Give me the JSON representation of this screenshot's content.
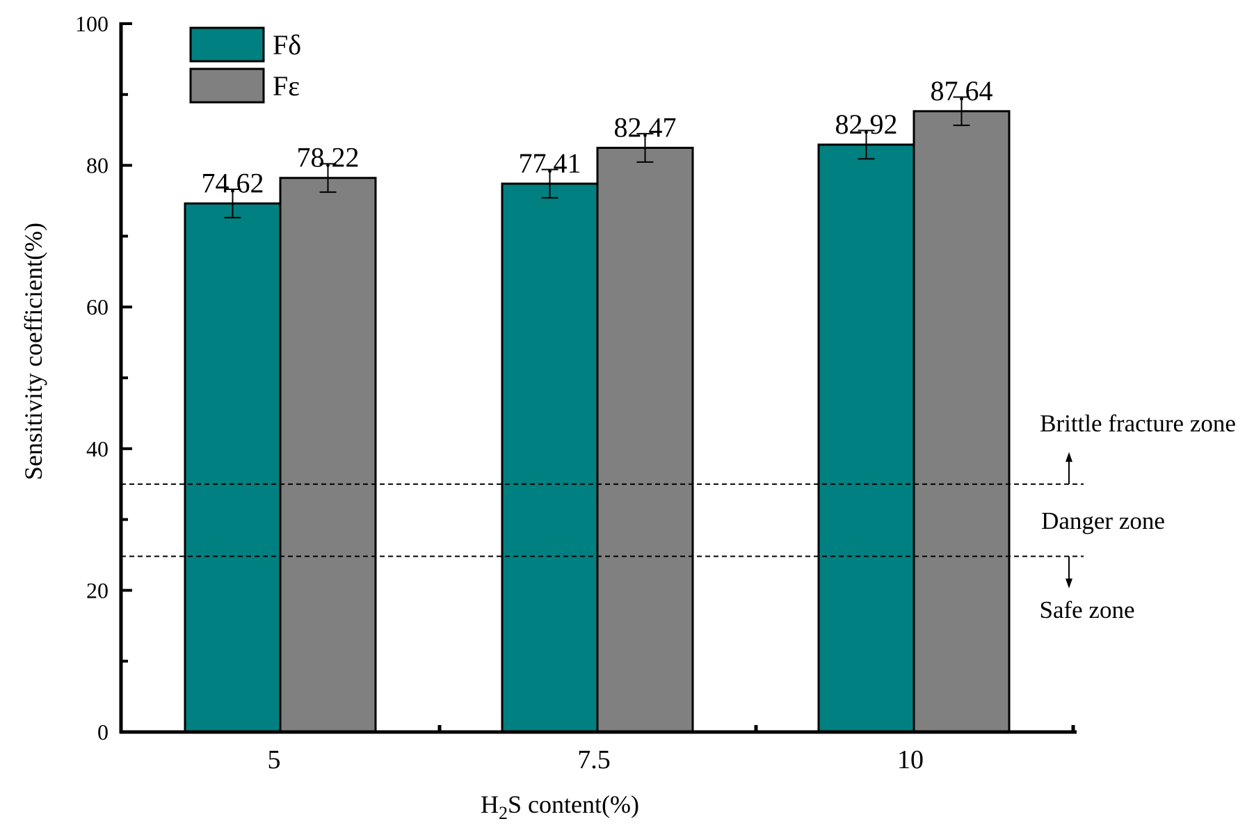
{
  "chart_data": {
    "type": "bar",
    "title": "",
    "xlabel": {
      "prefix": "H",
      "subscript": "2",
      "suffix": "S content(%)"
    },
    "ylabel": "Sensitivity coefficient(%)",
    "categories": [
      "5",
      "7.5",
      "10"
    ],
    "ylim": [
      0,
      100
    ],
    "yticks": [
      "0",
      "20",
      "40",
      "60",
      "80",
      "100"
    ],
    "series": [
      {
        "name": "Fδ",
        "color": "#008080",
        "values": [
          74.62,
          77.41,
          82.92
        ],
        "errors": [
          2.0,
          2.0,
          2.0
        ],
        "labels": [
          "74.62",
          "77.41",
          "82.92"
        ]
      },
      {
        "name": "Fε",
        "color": "#808080",
        "values": [
          78.22,
          82.47,
          87.64
        ],
        "errors": [
          2.0,
          2.0,
          2.0
        ],
        "labels": [
          "78.22",
          "82.47",
          "87.64"
        ]
      }
    ],
    "legend": "top-left",
    "grid": false,
    "thresholds": [
      {
        "value": 35,
        "style": "dashed"
      },
      {
        "value": 24.8,
        "style": "dashed"
      }
    ],
    "zones": [
      {
        "label": "Brittle fracture zone",
        "arrow": "up"
      },
      {
        "label": "Danger zone",
        "arrow": "none"
      },
      {
        "label": "Safe zone",
        "arrow": "down"
      }
    ]
  }
}
